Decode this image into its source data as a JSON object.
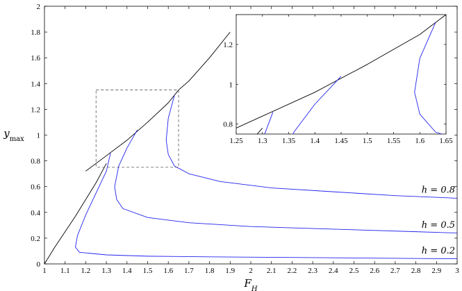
{
  "chart_data": {
    "type": "line",
    "xlabel": "F_H",
    "ylabel": "y_max",
    "xlim": [
      1,
      3
    ],
    "ylim": [
      0,
      2
    ],
    "xticks": [
      1,
      1.1,
      1.2,
      1.3,
      1.4,
      1.5,
      1.6,
      1.7,
      1.8,
      1.9,
      2,
      2.1,
      2.2,
      2.3,
      2.4,
      2.5,
      2.6,
      2.7,
      2.8,
      2.9,
      3
    ],
    "yticks": [
      0,
      0.2,
      0.4,
      0.6,
      0.8,
      1,
      1.2,
      1.4,
      1.6,
      1.8,
      2
    ],
    "grid": false,
    "legend": "none",
    "colors": {
      "envelope": "#000000",
      "response": "#2222ee",
      "zoom_box": "#555555"
    },
    "series": [
      {
        "name": "envelope-lower",
        "color": "#000000",
        "x": [
          1.0,
          1.05,
          1.1,
          1.15,
          1.2,
          1.25,
          1.28,
          1.3
        ],
        "y": [
          0.0,
          0.13,
          0.25,
          0.37,
          0.5,
          0.63,
          0.72,
          0.78
        ]
      },
      {
        "name": "envelope-upper",
        "color": "#000000",
        "x": [
          1.2,
          1.3,
          1.4,
          1.5,
          1.6,
          1.65,
          1.7,
          1.8,
          1.9
        ],
        "y": [
          0.72,
          0.84,
          0.96,
          1.1,
          1.25,
          1.35,
          1.42,
          1.6,
          1.8
        ]
      },
      {
        "name": "",
        "color": "#2222ee",
        "x": [
          1.32,
          1.3,
          1.25,
          1.2,
          1.16,
          1.15,
          1.17,
          1.3,
          1.5,
          1.8,
          2.2,
          2.6,
          3.0
        ],
        "y": [
          0.86,
          0.72,
          0.55,
          0.38,
          0.22,
          0.13,
          0.09,
          0.07,
          0.06,
          0.055,
          0.05,
          0.045,
          0.04
        ]
      },
      {
        "name": "",
        "color": "#2222ee",
        "x": [
          1.45,
          1.4,
          1.36,
          1.34,
          1.35,
          1.38,
          1.5,
          1.7,
          2.0,
          2.4,
          2.8,
          3.0
        ],
        "y": [
          1.04,
          0.9,
          0.76,
          0.6,
          0.5,
          0.43,
          0.36,
          0.32,
          0.29,
          0.27,
          0.25,
          0.24
        ]
      },
      {
        "name": "",
        "color": "#2222ee",
        "x": [
          1.63,
          1.6,
          1.59,
          1.6,
          1.63,
          1.7,
          1.85,
          2.1,
          2.4,
          2.7,
          3.0
        ],
        "y": [
          1.31,
          1.13,
          0.96,
          0.85,
          0.76,
          0.7,
          0.64,
          0.59,
          0.56,
          0.53,
          0.51
        ]
      }
    ],
    "annotations": [
      {
        "text": "h = 0.8",
        "x": 2.99,
        "y": 0.53
      },
      {
        "text": "h = 0.5",
        "x": 2.99,
        "y": 0.26
      },
      {
        "text": "h = 0.2",
        "x": 2.99,
        "y": 0.06
      }
    ],
    "zoom_region": {
      "xlim": [
        1.25,
        1.65
      ],
      "ylim": [
        0.75,
        1.35
      ]
    },
    "inset": {
      "xlim": [
        1.25,
        1.65
      ],
      "ylim": [
        0.75,
        1.35
      ],
      "xticks": [
        1.25,
        1.3,
        1.35,
        1.4,
        1.45,
        1.5,
        1.55,
        1.6,
        1.65
      ],
      "yticks": [
        0.8,
        1,
        1.2
      ]
    }
  }
}
